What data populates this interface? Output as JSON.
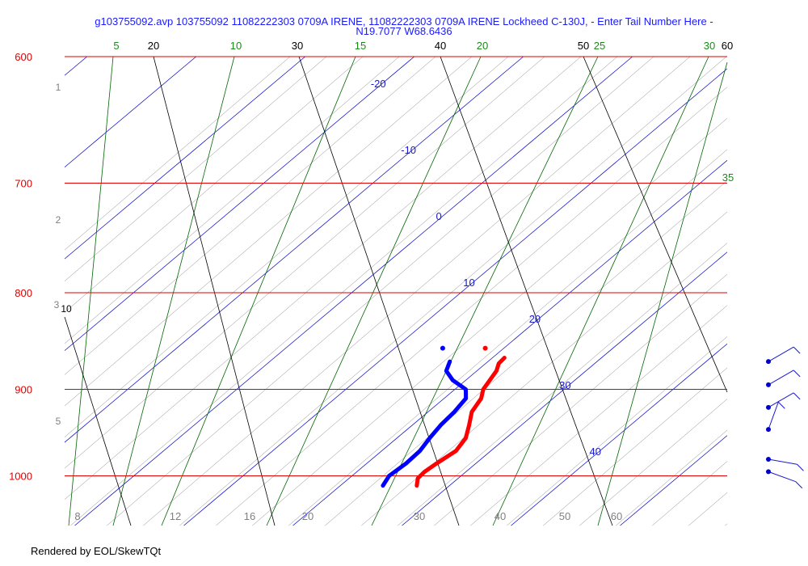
{
  "title_line1": "g103755092.avp 103755092 11082222303 0709A IRENE, 11082222303 0709A IRENE Lockheed C-130J, - Enter Tail Number Here -",
  "title_line2": "N19.7077 W68.6436",
  "credit": "Rendered by EOL/SkewTQt",
  "chart_data": {
    "type": "skew-t",
    "pressure_range_hpa": [
      1030,
      590
    ],
    "isobars": [
      {
        "p": 600,
        "label": "600"
      },
      {
        "p": 700,
        "label": "700"
      },
      {
        "p": 800,
        "label": "800"
      },
      {
        "p": 900,
        "label": "900"
      },
      {
        "p": 1000,
        "label": "1000"
      }
    ],
    "isotherm_labels": [
      {
        "t": -20,
        "label": "-20"
      },
      {
        "t": -10,
        "label": "-10"
      },
      {
        "t": 0,
        "label": "0"
      },
      {
        "t": 10,
        "label": "10"
      },
      {
        "t": 20,
        "label": "20"
      },
      {
        "t": 30,
        "label": "30"
      },
      {
        "t": 40,
        "label": "40"
      }
    ],
    "dry_adiabat_labels": [
      "20",
      "30",
      "40",
      "50",
      "60",
      "10"
    ],
    "moist_adiabat_labels": [
      "5",
      "10",
      "15",
      "20",
      "25",
      "30",
      "35"
    ],
    "mixing_ratio_labels": [
      "8",
      "12",
      "16",
      "20",
      "30",
      "40",
      "50",
      "60"
    ],
    "height_labels_km": [
      "1",
      "2",
      "3",
      "5"
    ],
    "temperature_profile": [
      {
        "p": 1012,
        "t": 27.0
      },
      {
        "p": 1003,
        "t": 26.3
      },
      {
        "p": 995,
        "t": 26.2
      },
      {
        "p": 985,
        "t": 26.4
      },
      {
        "p": 970,
        "t": 26.8
      },
      {
        "p": 955,
        "t": 26.3
      },
      {
        "p": 940,
        "t": 25.2
      },
      {
        "p": 925,
        "t": 24.0
      },
      {
        "p": 910,
        "t": 23.4
      },
      {
        "p": 900,
        "t": 22.6
      },
      {
        "p": 890,
        "t": 22.2
      },
      {
        "p": 880,
        "t": 21.8
      },
      {
        "p": 872,
        "t": 21.2
      },
      {
        "p": 866,
        "t": 21.1
      }
    ],
    "dewpoint_profile": [
      {
        "p": 1012,
        "t": 23.9
      },
      {
        "p": 1000,
        "t": 23.4
      },
      {
        "p": 985,
        "t": 23.6
      },
      {
        "p": 970,
        "t": 23.5
      },
      {
        "p": 955,
        "t": 23.0
      },
      {
        "p": 940,
        "t": 22.6
      },
      {
        "p": 925,
        "t": 22.4
      },
      {
        "p": 910,
        "t": 22.0
      },
      {
        "p": 900,
        "t": 21.0
      },
      {
        "p": 890,
        "t": 18.8
      },
      {
        "p": 880,
        "t": 17.2
      },
      {
        "p": 870,
        "t": 16.5
      }
    ],
    "isolated_points": [
      {
        "series": "temperature",
        "p": 856,
        "t": 18.3
      },
      {
        "series": "dewpoint",
        "p": 856,
        "t": 14.4
      }
    ],
    "wind_barbs": [
      {
        "p": 870,
        "dir_deg": 60,
        "speed_kt": 10
      },
      {
        "p": 895,
        "dir_deg": 60,
        "speed_kt": 10
      },
      {
        "p": 920,
        "dir_deg": 60,
        "speed_kt": 10
      },
      {
        "p": 945,
        "dir_deg": 20,
        "speed_kt": 10
      },
      {
        "p": 980,
        "dir_deg": 100,
        "speed_kt": 10
      },
      {
        "p": 995,
        "dir_deg": 110,
        "speed_kt": 10
      }
    ],
    "colors": {
      "isobar": "#e00000",
      "isotherm": "#0000cc",
      "dry_adiabat": "#000000",
      "moist_adiabat": "#006600",
      "mixing_ratio": "#888888",
      "temperature": "#ff0000",
      "dewpoint": "#0000ff",
      "isotherm_label": "#1a1ad0",
      "isobar_label": "#e00000",
      "moist_label": "#1a8a1a",
      "gray_label": "#808080",
      "title": "#1a1aff"
    }
  }
}
